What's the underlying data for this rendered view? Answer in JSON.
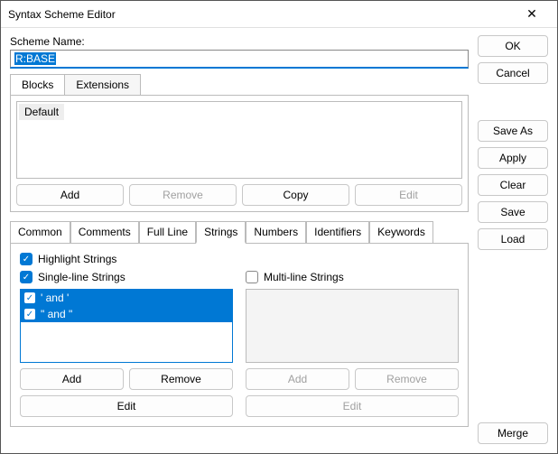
{
  "window": {
    "title": "Syntax Scheme Editor"
  },
  "scheme": {
    "label": "Scheme Name:",
    "value": "R:BASE"
  },
  "blockTabs": {
    "blocks": "Blocks",
    "extensions": "Extensions"
  },
  "blockList": {
    "item0": "Default"
  },
  "blockBtns": {
    "add": "Add",
    "remove": "Remove",
    "copy": "Copy",
    "edit": "Edit"
  },
  "catTabs": {
    "common": "Common",
    "comments": "Comments",
    "fullline": "Full Line",
    "strings": "Strings",
    "numbers": "Numbers",
    "identifiers": "Identifiers",
    "keywords": "Keywords"
  },
  "strings": {
    "highlight": "Highlight Strings",
    "single": "Single-line Strings",
    "multi": "Multi-line Strings",
    "items": {
      "i0": "' and '",
      "i1": "\" and \""
    },
    "btns": {
      "add": "Add",
      "remove": "Remove",
      "edit": "Edit"
    }
  },
  "side": {
    "ok": "OK",
    "cancel": "Cancel",
    "saveas": "Save As",
    "apply": "Apply",
    "clear": "Clear",
    "save": "Save",
    "load": "Load",
    "merge": "Merge"
  }
}
